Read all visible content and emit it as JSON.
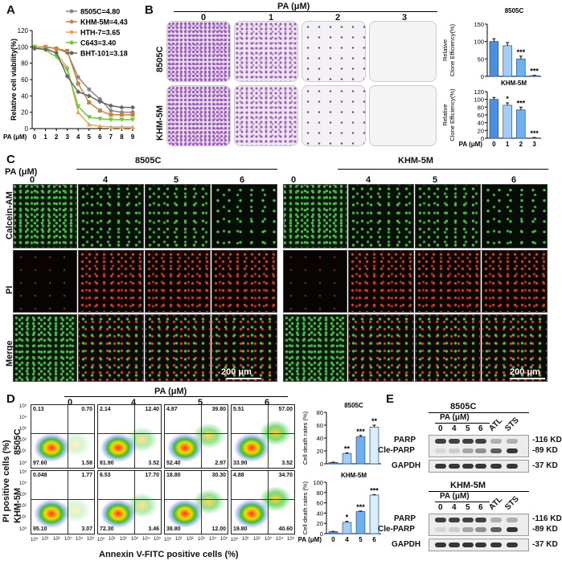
{
  "panels": {
    "A": "A",
    "B": "B",
    "C": "C",
    "D": "D",
    "E": "E"
  },
  "chart_data": [
    {
      "type": "line",
      "panel": "A",
      "ylabel": "Relative cell viability(%)",
      "xlabel": "PA (μM)",
      "x": [
        0,
        1,
        2,
        3,
        4,
        5,
        6,
        7,
        8,
        9
      ],
      "ylim": [
        0,
        120
      ],
      "yticks": [
        0,
        20,
        40,
        60,
        80,
        100,
        120
      ],
      "series": [
        {
          "name": "8505C=4.80",
          "color": "#888888",
          "marker": "circle",
          "values": [
            100,
            100,
            98,
            93,
            63,
            48,
            36,
            22,
            20,
            20
          ]
        },
        {
          "name": "KHM-5M=4.43",
          "color": "#c8843a",
          "marker": "square",
          "values": [
            100,
            100,
            98,
            95,
            55,
            32,
            22,
            17,
            17,
            17
          ]
        },
        {
          "name": "HTH-7=3.65",
          "color": "#e8a85a",
          "marker": "triangle",
          "values": [
            100,
            99,
            92,
            75,
            20,
            5,
            3,
            2,
            2,
            2
          ]
        },
        {
          "name": "C643=3.40",
          "color": "#66cc33",
          "marker": "triangle-down",
          "values": [
            100,
            96,
            88,
            72,
            27,
            14,
            12,
            11,
            11,
            11
          ]
        },
        {
          "name": "BHT-101=3.18",
          "color": "#666666",
          "marker": "diamond",
          "values": [
            98,
            97,
            93,
            64,
            45,
            40,
            33,
            28,
            26,
            26
          ]
        }
      ]
    },
    {
      "type": "bar",
      "panel": "B",
      "title": "8505C",
      "ylabel": "Relative Clone Efficiency(%)",
      "categories": [
        "0",
        "1",
        "2",
        "3"
      ],
      "values": [
        100,
        88,
        50,
        2
      ],
      "errors": [
        8,
        9,
        8,
        1
      ],
      "ylim": [
        0,
        150
      ],
      "yticks": [
        0,
        50,
        100,
        150
      ],
      "significance": [
        "",
        "",
        "***",
        "***"
      ],
      "colors": [
        "#4a90e2",
        "#a8cdf5",
        "#6fb0f0",
        "#dceefc"
      ]
    },
    {
      "type": "bar",
      "panel": "B",
      "title": "KHM-5M",
      "ylabel": "Relative Clone Efficiency(%)",
      "xlabel": "PA (μM)",
      "categories": [
        "0",
        "1",
        "2",
        "3"
      ],
      "values": [
        100,
        85,
        73,
        1
      ],
      "errors": [
        5,
        6,
        7,
        1
      ],
      "ylim": [
        0,
        120
      ],
      "yticks": [
        0,
        20,
        40,
        60,
        80,
        100,
        120
      ],
      "significance": [
        "",
        "*",
        "***",
        "***"
      ],
      "colors": [
        "#4a90e2",
        "#a8cdf5",
        "#6fb0f0",
        "#dceefc"
      ]
    },
    {
      "type": "bar",
      "panel": "D",
      "title": "8505C",
      "ylabel": "Cell death rates (%)",
      "categories": [
        "0",
        "4",
        "5",
        "6"
      ],
      "values": [
        2,
        16,
        42,
        57
      ],
      "errors": [
        0.5,
        1,
        2,
        3
      ],
      "ylim": [
        0,
        80
      ],
      "yticks": [
        0,
        20,
        40,
        60,
        80
      ],
      "significance": [
        "",
        "**",
        "***",
        "**"
      ],
      "colors": [
        "#4a90e2",
        "#a8cdf5",
        "#6fb0f0",
        "#dceefc"
      ]
    },
    {
      "type": "bar",
      "panel": "D",
      "title": "KHM-5M",
      "ylabel": "Cell death rates (%)",
      "xlabel": "PA (μM)",
      "categories": [
        "0",
        "4",
        "5",
        "6"
      ],
      "values": [
        4,
        22,
        43,
        75
      ],
      "errors": [
        0.5,
        2,
        1,
        1
      ],
      "ylim": [
        0,
        100
      ],
      "yticks": [
        0,
        20,
        40,
        60,
        80,
        100
      ],
      "significance": [
        "",
        "*",
        "***",
        "***"
      ],
      "colors": [
        "#4a90e2",
        "#a8cdf5",
        "#6fb0f0",
        "#dceefc"
      ]
    }
  ],
  "B": {
    "title": "PA (μM)",
    "doses": [
      "0",
      "1",
      "2",
      "3"
    ],
    "rows": [
      "8505C",
      "KHM-5M"
    ]
  },
  "C": {
    "pa_label": "PA (μM)",
    "groups": [
      "8505C",
      "KHM-5M"
    ],
    "doses": [
      "0",
      "4",
      "5",
      "6"
    ],
    "rows": [
      "Calcein-AM",
      "PI",
      "Merge"
    ],
    "scalebar": "200 μm"
  },
  "D": {
    "title": "PA (μM)",
    "doses": [
      "0",
      "4",
      "5",
      "6"
    ],
    "rows": [
      "8505C",
      "KHM-5M"
    ],
    "ylabel": "PI positive cells (%)",
    "xlabel": "Annexin V-FITC positive cells (%)",
    "quadrants": [
      [
        [
          "0.13",
          "0.70",
          "97.60",
          "1.58"
        ],
        [
          "2.14",
          "12.40",
          "81.90",
          "3.52"
        ],
        [
          "4.87",
          "39.80",
          "52.40",
          "2.97"
        ],
        [
          "5.51",
          "57.00",
          "33.90",
          "3.52"
        ]
      ],
      [
        [
          "0.048",
          "1.77",
          "95.10",
          "3.07"
        ],
        [
          "6.53",
          "17.70",
          "72.30",
          "3.46"
        ],
        [
          "18.80",
          "30.30",
          "38.80",
          "12.00"
        ],
        [
          "4.88",
          "34.70",
          "19.80",
          "40.60"
        ]
      ]
    ],
    "yticks": [
      "10⁵",
      "10⁴",
      "10³",
      "10²",
      "10¹",
      "10⁰"
    ],
    "xticks": [
      "10⁰",
      "10¹",
      "10²",
      "10³",
      "10⁴",
      "10⁵"
    ]
  },
  "E": {
    "groups": [
      "8505C",
      "KHM-5M"
    ],
    "pa_label": "PA (μM)",
    "lanes": [
      "0",
      "4",
      "5",
      "6",
      "ATL",
      "STS"
    ],
    "proteins": [
      "PARP",
      "Cle-PARP",
      "GAPDH"
    ],
    "sizes": [
      "-116 KD",
      "-89 KD",
      "-37 KD"
    ]
  }
}
